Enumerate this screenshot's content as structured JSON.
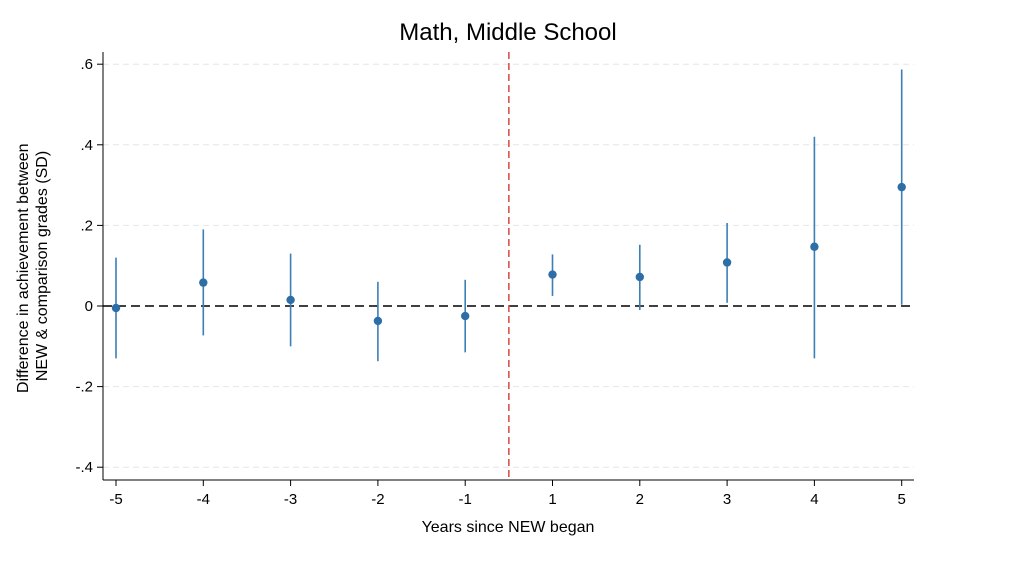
{
  "chart_data": {
    "type": "scatter",
    "title": "Math, Middle School",
    "xlabel": "Years since NEW began",
    "ylabel_lines": [
      "Difference in achievement between",
      "NEW & comparison grades (SD)"
    ],
    "x_tick_labels": [
      "-5",
      "-4",
      "-3",
      "-2",
      "-1",
      "1",
      "2",
      "3",
      "4",
      "5"
    ],
    "y_ticks": [
      {
        "value": 0.6,
        "label": ".6"
      },
      {
        "value": 0.4,
        "label": ".4"
      },
      {
        "value": 0.2,
        "label": ".2"
      },
      {
        "value": 0,
        "label": "0"
      },
      {
        "value": -0.2,
        "label": "-.2"
      },
      {
        "value": -0.4,
        "label": "-.4"
      }
    ],
    "ylim": [
      -0.43,
      0.63
    ],
    "grid": "horizontal dashed",
    "reference_lines": {
      "horizontal": {
        "value": 0,
        "style": "dashed",
        "color": "#000000"
      },
      "vertical": {
        "between": [
          "-1",
          "1"
        ],
        "style": "dashed",
        "color": "#d9534f"
      }
    },
    "colors": {
      "points": "#2e6ea6",
      "error_bars": "#3b7fb5",
      "grid": "#e6e6e6"
    },
    "points": [
      {
        "x": "-5",
        "estimate": -0.005,
        "ci_low": -0.13,
        "ci_high": 0.12
      },
      {
        "x": "-4",
        "estimate": 0.058,
        "ci_low": -0.073,
        "ci_high": 0.19
      },
      {
        "x": "-3",
        "estimate": 0.015,
        "ci_low": -0.1,
        "ci_high": 0.13
      },
      {
        "x": "-2",
        "estimate": -0.037,
        "ci_low": -0.137,
        "ci_high": 0.06
      },
      {
        "x": "-1",
        "estimate": -0.025,
        "ci_low": -0.115,
        "ci_high": 0.065
      },
      {
        "x": "1",
        "estimate": 0.078,
        "ci_low": 0.025,
        "ci_high": 0.128
      },
      {
        "x": "2",
        "estimate": 0.072,
        "ci_low": -0.01,
        "ci_high": 0.152
      },
      {
        "x": "3",
        "estimate": 0.108,
        "ci_low": 0.008,
        "ci_high": 0.206
      },
      {
        "x": "4",
        "estimate": 0.147,
        "ci_low": -0.13,
        "ci_high": 0.42
      },
      {
        "x": "5",
        "estimate": 0.295,
        "ci_low": 0.003,
        "ci_high": 0.587
      }
    ]
  }
}
